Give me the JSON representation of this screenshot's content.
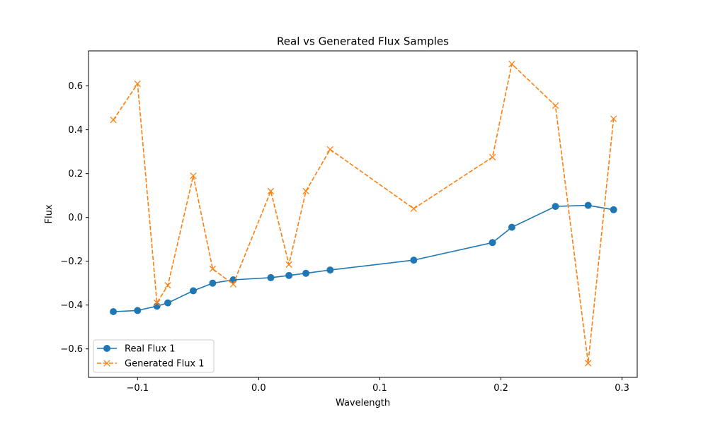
{
  "chart_data": {
    "type": "line",
    "title": "Real vs Generated Flux Samples",
    "xlabel": "Wavelength",
    "ylabel": "Flux",
    "xlim": [
      -0.1405,
      0.3125
    ],
    "ylim": [
      -0.73,
      0.76
    ],
    "xticks": [
      -0.1,
      0.0,
      0.1,
      0.2,
      0.3
    ],
    "xtick_labels": [
      "−0.1",
      "0.0",
      "0.1",
      "0.2",
      "0.3"
    ],
    "yticks": [
      -0.6,
      -0.4,
      -0.2,
      0.0,
      0.2,
      0.4,
      0.6
    ],
    "ytick_labels": [
      "−0.6",
      "−0.4",
      "−0.2",
      "0.0",
      "0.2",
      "0.4",
      "0.6"
    ],
    "grid": false,
    "legend": "lower-left",
    "x": [
      -0.12,
      -0.1,
      -0.084,
      -0.075,
      -0.054,
      -0.038,
      -0.021,
      0.01,
      0.025,
      0.039,
      0.059,
      0.128,
      0.193,
      0.209,
      0.245,
      0.272,
      0.293
    ],
    "series": [
      {
        "name": "Real Flux 1",
        "color": "#1f77b4",
        "line_style": "solid",
        "marker": "circle",
        "values": [
          -0.43,
          -0.425,
          -0.405,
          -0.39,
          -0.335,
          -0.3,
          -0.285,
          -0.275,
          -0.265,
          -0.255,
          -0.24,
          -0.195,
          -0.115,
          -0.045,
          0.05,
          0.055,
          0.035
        ]
      },
      {
        "name": "Generated Flux 1",
        "color": "#ff7f0e",
        "line_style": "dashed",
        "marker": "x",
        "values": [
          0.445,
          0.61,
          -0.39,
          -0.31,
          0.19,
          -0.235,
          -0.305,
          0.12,
          -0.215,
          0.12,
          0.31,
          0.04,
          0.275,
          0.7,
          0.51,
          -0.665,
          0.45
        ]
      }
    ]
  }
}
